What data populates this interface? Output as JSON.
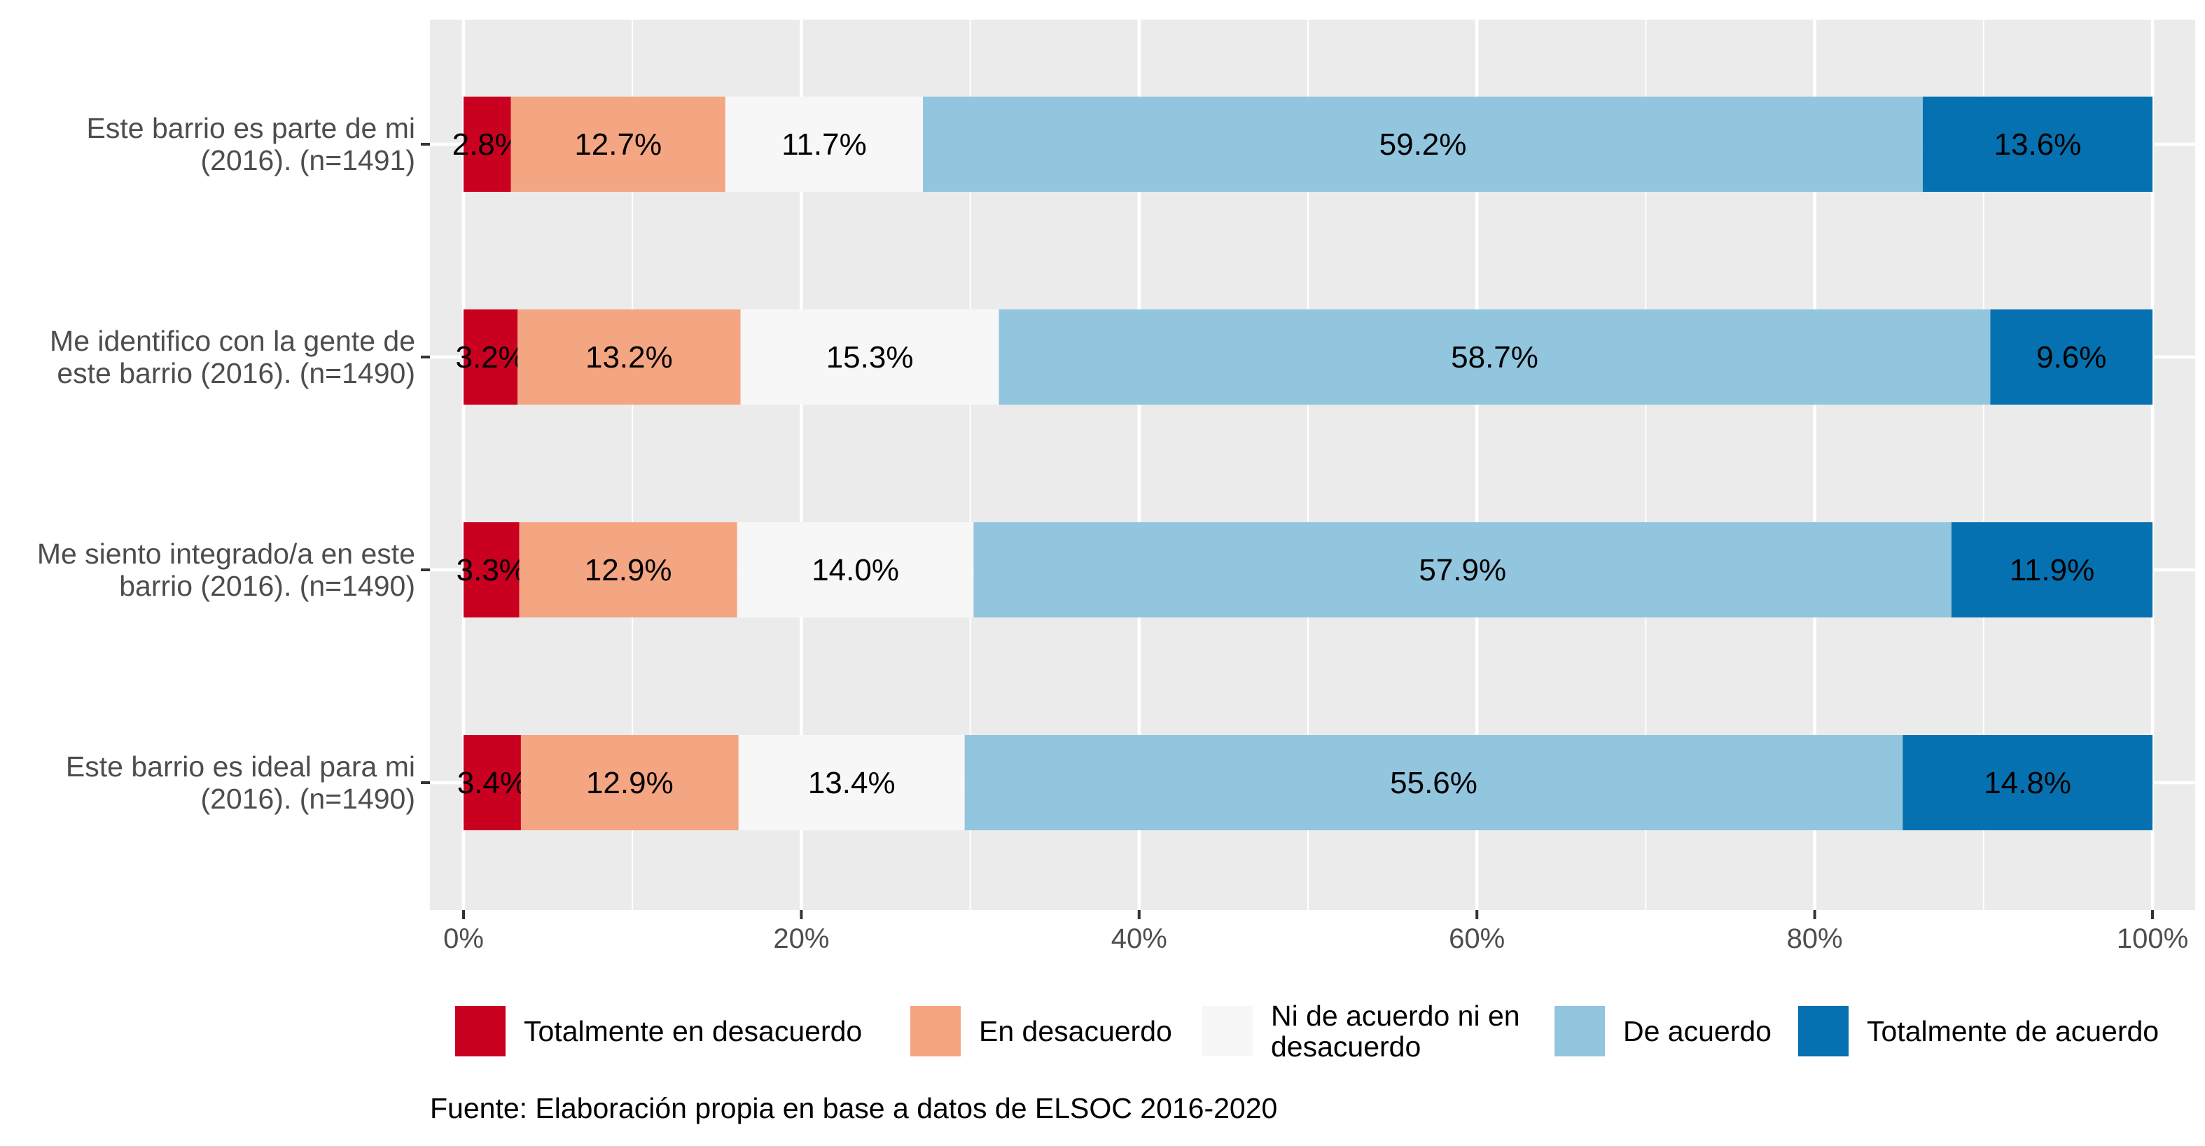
{
  "chart_data": {
    "type": "bar",
    "orientation": "horizontal",
    "stacked": true,
    "percent": true,
    "categories": [
      [
        "Este barrio es parte de mi",
        "(2016). (n=1491)"
      ],
      [
        "Me identifico con la gente de",
        "este barrio (2016). (n=1490)"
      ],
      [
        "Me siento integrado/a en este",
        "barrio (2016). (n=1490)"
      ],
      [
        "Este barrio es ideal para mi",
        "(2016). (n=1490)"
      ]
    ],
    "series": [
      {
        "name": "Totalmente en desacuerdo",
        "color": "#ca0020",
        "values": [
          2.8,
          3.2,
          3.3,
          3.4
        ],
        "labels": [
          "2.8%",
          "3.2%",
          "3.3%",
          "3.4%"
        ]
      },
      {
        "name": "En desacuerdo",
        "color": "#f4a582",
        "values": [
          12.7,
          13.2,
          12.9,
          12.9
        ],
        "labels": [
          "12.7%",
          "13.2%",
          "12.9%",
          "12.9%"
        ]
      },
      {
        "name": [
          "Ni de acuerdo ni en",
          "desacuerdo"
        ],
        "color": "#f7f7f7",
        "values": [
          11.7,
          15.3,
          14.0,
          13.4
        ],
        "labels": [
          "11.7%",
          "15.3%",
          "14.0%",
          "13.4%"
        ]
      },
      {
        "name": "De acuerdo",
        "color": "#92c5de",
        "values": [
          59.2,
          58.7,
          57.9,
          55.6
        ],
        "labels": [
          "59.2%",
          "58.7%",
          "57.9%",
          "55.6%"
        ]
      },
      {
        "name": "Totalmente de acuerdo",
        "color": "#0571b0",
        "values": [
          13.6,
          9.6,
          11.9,
          14.8
        ],
        "labels": [
          "13.6%",
          "9.6%",
          "11.9%",
          "14.8%"
        ]
      }
    ],
    "xticks": [
      "0%",
      "20%",
      "40%",
      "60%",
      "80%",
      "100%"
    ],
    "xlim": [
      0,
      100
    ],
    "grid": true,
    "legend_position": "bottom",
    "caption": "Fuente: Elaboración propia en base a datos de ELSOC 2016-2020",
    "panel_color": "#ebebeb",
    "grid_color": "#ffffff"
  }
}
